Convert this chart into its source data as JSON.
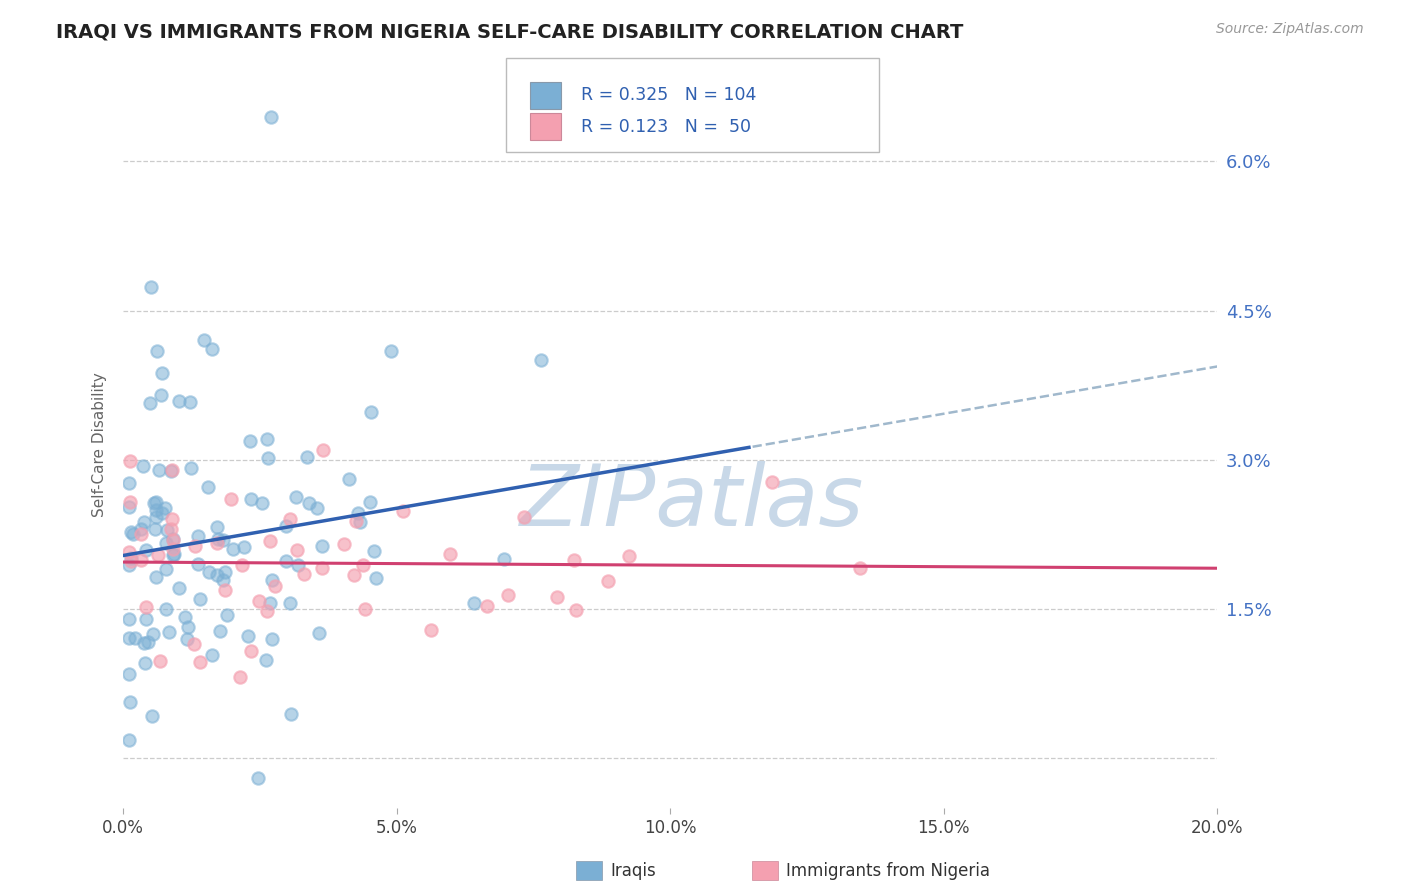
{
  "title": "IRAQI VS IMMIGRANTS FROM NIGERIA SELF-CARE DISABILITY CORRELATION CHART",
  "source": "Source: ZipAtlas.com",
  "ylabel": "Self-Care Disability",
  "xlim": [
    0.0,
    0.2
  ],
  "ylim": [
    -0.005,
    0.068
  ],
  "yticks": [
    0.0,
    0.015,
    0.03,
    0.045,
    0.06
  ],
  "ytick_labels": [
    "",
    "1.5%",
    "3.0%",
    "4.5%",
    "6.0%"
  ],
  "xticks": [
    0.0,
    0.05,
    0.1,
    0.15,
    0.2
  ],
  "xtick_labels": [
    "0.0%",
    "5.0%",
    "10.0%",
    "15.0%",
    "20.0%"
  ],
  "series1_color": "#7bafd4",
  "series2_color": "#f4a0b0",
  "line1_color": "#3060b0",
  "line2_color": "#d04070",
  "line1_dash_color": "#a0b8cc",
  "watermark_color": "#c8d8e8",
  "r1": 0.325,
  "n1": 104,
  "r2": 0.123,
  "n2": 50,
  "legend_color": "#3060b0",
  "title_fontsize": 14,
  "tick_color": "#4472c4"
}
